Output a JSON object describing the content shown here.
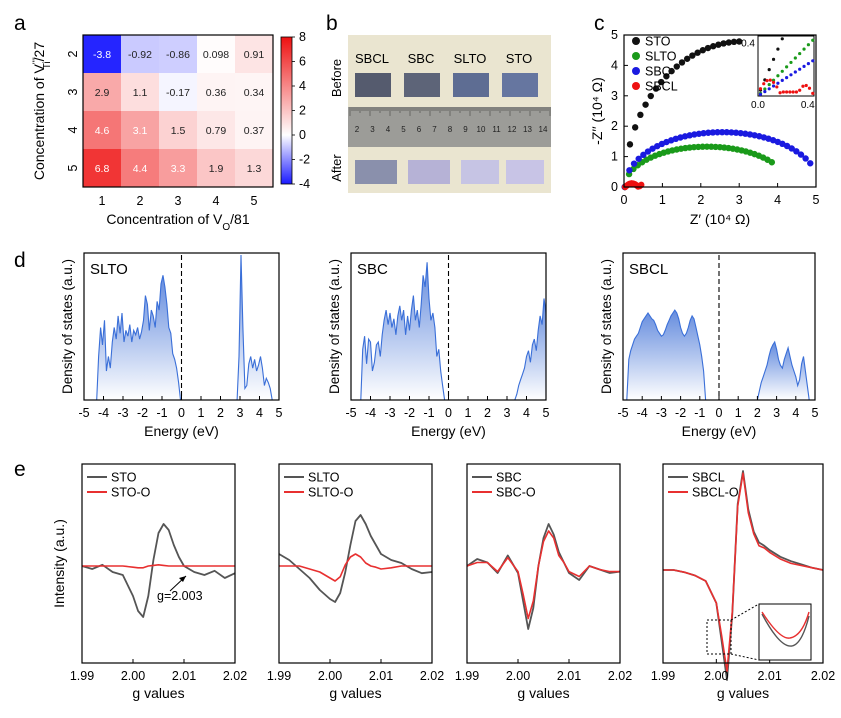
{
  "panel_labels": [
    "a",
    "b",
    "c",
    "d",
    "e"
  ],
  "chart_data": [
    {
      "id": "a",
      "type": "heatmap",
      "xlabel": "Concentration of V̇̇O/81",
      "xlabel_main": "Concentration of V",
      "xlabel_sub": "O",
      "xlabel_tail": "/81",
      "ylabel": "Concentration of V''''Ti/27",
      "ylabel_main": "Concentration of V",
      "ylabel_sup": "''''",
      "ylabel_sub": "Ti",
      "ylabel_tail": "/27",
      "x_categories": [
        "1",
        "2",
        "3",
        "4",
        "5"
      ],
      "y_categories": [
        "2",
        "3",
        "4",
        "5"
      ],
      "values": [
        [
          -3.8,
          -0.92,
          -0.86,
          0.098,
          0.91
        ],
        [
          2.9,
          1.1,
          -0.17,
          0.36,
          0.34
        ],
        [
          4.6,
          3.1,
          1.5,
          0.79,
          0.37
        ],
        [
          6.8,
          4.4,
          3.3,
          1.9,
          1.3
        ]
      ],
      "value_labels": [
        [
          "-3.8",
          "-0.92",
          "-0.86",
          "0.098",
          "0.91"
        ],
        [
          "2.9",
          "1.1",
          "-0.17",
          "0.36",
          "0.34"
        ],
        [
          "4.6",
          "3.1",
          "1.5",
          "0.79",
          "0.37"
        ],
        [
          "6.8",
          "4.4",
          "3.3",
          "1.9",
          "1.3"
        ]
      ],
      "colorbar": {
        "min": -4,
        "max": 8,
        "ticks": [
          "8",
          "6",
          "4",
          "2",
          "0",
          "-2",
          "-4"
        ],
        "low_color": "#1a1aff",
        "mid_color": "#ffffff",
        "high_color": "#ee1111"
      }
    },
    {
      "id": "c",
      "type": "scatter",
      "xlabel": "Z′ (10⁴ Ω)",
      "ylabel": "-Z′′ (10⁴ Ω)",
      "xlim": [
        0,
        5
      ],
      "ylim": [
        0,
        5
      ],
      "xticks": [
        "0",
        "1",
        "2",
        "3",
        "4",
        "5"
      ],
      "yticks": [
        "0",
        "1",
        "2",
        "3",
        "4",
        "5"
      ],
      "legend_position": "top-left",
      "series": [
        {
          "name": "STO",
          "color": "#111111",
          "shape": "semicircle",
          "x_start": 0.02,
          "x_end": 6.2,
          "x_max_shown": 3.0
        },
        {
          "name": "SLTO",
          "color": "#1a9a1a",
          "shape": "semicircle",
          "x_start": 0.02,
          "x_end": 4.3,
          "x_max_shown": 3.85
        },
        {
          "name": "SBC",
          "color": "#1a1ae0",
          "shape": "semicircle",
          "x_start": 0.02,
          "x_end": 5.1,
          "x_max_shown": 4.85
        },
        {
          "name": "SBCL",
          "color": "#ee1111",
          "shape": "arc_plus_small",
          "x_start": 0.03,
          "x_end": 0.25,
          "x_max_shown": 0.45
        }
      ],
      "inset": {
        "xlim": [
          0,
          0.45
        ],
        "ylim": [
          0,
          0.45
        ],
        "xticks": [
          "0.0",
          "0.4"
        ],
        "yticks": [
          "0.4"
        ]
      }
    },
    {
      "id": "d",
      "type": "area",
      "subplots": [
        {
          "name": "SLTO",
          "xlim": [
            -5,
            5
          ],
          "xticks": [
            "-5",
            "-4",
            "-3",
            "-2",
            "-1",
            "0",
            "1",
            "2",
            "3",
            "4",
            "5"
          ],
          "xlabel": "Energy (eV)",
          "ylabel": "Density of states (a.u.)",
          "x": [
            -4.35,
            -4.25,
            -4.15,
            -4.05,
            -3.95,
            -3.85,
            -3.75,
            -3.65,
            -3.55,
            -3.45,
            -3.35,
            -3.25,
            -3.15,
            -3.05,
            -2.95,
            -2.85,
            -2.75,
            -2.65,
            -2.55,
            -2.45,
            -2.35,
            -2.25,
            -2.15,
            -2.05,
            -1.95,
            -1.85,
            -1.75,
            -1.65,
            -1.55,
            -1.45,
            -1.35,
            -1.25,
            -1.15,
            -1.05,
            -0.95,
            -0.85,
            -0.75,
            -0.65,
            -0.55,
            -0.45,
            -0.35,
            -0.25,
            -0.15,
            -0.05,
            2.85,
            2.95,
            3.05,
            3.15,
            3.25,
            3.35,
            3.45,
            3.55,
            3.65,
            3.75,
            3.85,
            3.95,
            4.05,
            4.15,
            4.25,
            4.35,
            4.45,
            4.55,
            4.65,
            4.75
          ],
          "y": [
            0,
            0.3,
            0.5,
            0.38,
            0.55,
            0.2,
            0.3,
            0.22,
            0.4,
            0.5,
            0.42,
            0.58,
            0.46,
            0.6,
            0.4,
            0.48,
            0.44,
            0.52,
            0.4,
            0.48,
            0.45,
            0.5,
            0.42,
            0.47,
            0.55,
            0.72,
            0.66,
            0.48,
            0.62,
            0.58,
            0.5,
            0.68,
            0.62,
            0.8,
            0.86,
            0.78,
            0.66,
            0.5,
            0.46,
            0.32,
            0.28,
            0.22,
            0.12,
            0,
            0,
            0.3,
            1.0,
            0.5,
            0.08,
            0.1,
            0.25,
            0.3,
            0.22,
            0.28,
            0.2,
            0.24,
            0.3,
            0.22,
            0.1,
            0.15,
            0.12,
            0.08,
            0,
            0
          ]
        },
        {
          "name": "SBC",
          "xlim": [
            -5,
            5
          ],
          "xticks": [
            "-5",
            "-4",
            "-3",
            "-2",
            "-1",
            "0",
            "1",
            "2",
            "3",
            "4",
            "5"
          ],
          "xlabel": "Energy (eV)",
          "ylabel": "Density of states (a.u.)",
          "x": [
            -4.5,
            -4.4,
            -4.3,
            -4.2,
            -4.1,
            -4.0,
            -3.9,
            -3.8,
            -3.7,
            -3.6,
            -3.5,
            -3.4,
            -3.3,
            -3.2,
            -3.1,
            -3.0,
            -2.9,
            -2.8,
            -2.7,
            -2.6,
            -2.5,
            -2.4,
            -2.3,
            -2.2,
            -2.1,
            -2.0,
            -1.9,
            -1.8,
            -1.7,
            -1.6,
            -1.5,
            -1.4,
            -1.3,
            -1.2,
            -1.1,
            -1.0,
            -0.9,
            -0.8,
            -0.7,
            -0.6,
            -0.5,
            -0.4,
            -0.3,
            -0.2,
            3.4,
            3.5,
            3.6,
            3.7,
            3.8,
            3.9,
            4.0,
            4.1,
            4.2,
            4.3,
            4.4,
            4.5,
            4.6,
            4.7,
            4.8,
            4.9,
            5.0
          ],
          "y": [
            0,
            0.35,
            0.44,
            0.25,
            0.42,
            0.4,
            0.2,
            0.26,
            0.38,
            0.4,
            0.3,
            0.45,
            0.55,
            0.62,
            0.52,
            0.6,
            0.5,
            0.56,
            0.45,
            0.58,
            0.65,
            0.55,
            0.62,
            0.45,
            0.58,
            0.48,
            0.62,
            0.72,
            0.55,
            0.62,
            0.5,
            0.66,
            0.86,
            0.78,
            0.95,
            0.7,
            0.55,
            0.6,
            0.5,
            0.3,
            0.35,
            0.2,
            0.1,
            0,
            0,
            0.04,
            0.1,
            0.14,
            0.18,
            0.22,
            0.3,
            0.34,
            0.26,
            0.38,
            0.42,
            0.34,
            0.48,
            0.58,
            0.52,
            0.7,
            0.6
          ]
        },
        {
          "name": "SBCL",
          "xlim": [
            -5,
            5
          ],
          "xticks": [
            "-5",
            "-4",
            "-3",
            "-2",
            "-1",
            "0",
            "1",
            "2",
            "3",
            "4",
            "5"
          ],
          "xlabel": "Energy (eV)",
          "ylabel": "Density of states (a.u.)",
          "x": [
            -4.8,
            -4.7,
            -4.6,
            -4.5,
            -4.4,
            -4.3,
            -4.2,
            -4.1,
            -4.0,
            -3.9,
            -3.8,
            -3.7,
            -3.6,
            -3.5,
            -3.4,
            -3.3,
            -3.2,
            -3.1,
            -3.0,
            -2.9,
            -2.8,
            -2.7,
            -2.6,
            -2.5,
            -2.4,
            -2.3,
            -2.2,
            -2.1,
            -2.0,
            -1.9,
            -1.8,
            -1.7,
            -1.6,
            -1.5,
            -1.4,
            -1.3,
            -1.2,
            -1.1,
            -1.0,
            -0.9,
            -0.8,
            -0.7,
            2.0,
            2.1,
            2.2,
            2.3,
            2.4,
            2.5,
            2.6,
            2.7,
            2.8,
            2.9,
            3.0,
            3.1,
            3.2,
            3.3,
            3.4,
            3.5,
            3.6,
            3.7,
            3.8,
            3.9,
            4.0,
            4.1,
            4.2,
            4.3,
            4.4,
            4.5,
            4.6,
            4.7
          ],
          "y": [
            0,
            0.28,
            0.34,
            0.38,
            0.42,
            0.44,
            0.46,
            0.5,
            0.54,
            0.56,
            0.58,
            0.6,
            0.58,
            0.56,
            0.55,
            0.52,
            0.48,
            0.46,
            0.44,
            0.45,
            0.48,
            0.52,
            0.55,
            0.58,
            0.6,
            0.62,
            0.6,
            0.56,
            0.5,
            0.46,
            0.44,
            0.46,
            0.5,
            0.55,
            0.58,
            0.56,
            0.5,
            0.44,
            0.38,
            0.3,
            0.2,
            0,
            0,
            0.06,
            0.12,
            0.16,
            0.2,
            0.24,
            0.3,
            0.35,
            0.38,
            0.4,
            0.35,
            0.28,
            0.24,
            0.22,
            0.28,
            0.32,
            0.36,
            0.3,
            0.24,
            0.2,
            0.16,
            0.1,
            0.14,
            0.25,
            0.3,
            0.2,
            0.1,
            0
          ]
        }
      ]
    },
    {
      "id": "e",
      "type": "line",
      "xlim": [
        1.99,
        2.02
      ],
      "xticks": [
        "1.99",
        "2.00",
        "2.01",
        "2.02"
      ],
      "xlabel": "g values",
      "ylabel": "Intensity (a.u.)",
      "annotation": "g=2.003",
      "subplots": [
        {
          "legend": [
            "STO",
            "STO-O"
          ],
          "colors": [
            "#555555",
            "#e83030"
          ],
          "x": [
            1.99,
            1.992,
            1.994,
            1.996,
            1.998,
            2.0,
            2.001,
            2.002,
            2.003,
            2.004,
            2.005,
            2.006,
            2.007,
            2.008,
            2.009,
            2.01,
            2.012,
            2.014,
            2.016,
            2.018,
            2.02
          ],
          "series": [
            [
              0.0,
              -0.05,
              0.02,
              -0.1,
              -0.15,
              -0.5,
              -0.75,
              -0.85,
              -0.5,
              0.1,
              0.55,
              0.7,
              0.6,
              0.35,
              0.15,
              0.0,
              -0.1,
              -0.15,
              -0.08,
              -0.2,
              -0.12
            ],
            [
              0.0,
              0.0,
              0.0,
              0.0,
              0.0,
              -0.02,
              -0.03,
              -0.03,
              0.0,
              0.01,
              0.02,
              0.01,
              0.0,
              0.0,
              0.0,
              0.0,
              0.0,
              0.0,
              0.0,
              0.0,
              0.0
            ]
          ]
        },
        {
          "legend": [
            "SLTO",
            "SLTO-O"
          ],
          "colors": [
            "#555555",
            "#e83030"
          ],
          "x": [
            1.99,
            1.992,
            1.994,
            1.996,
            1.998,
            2.0,
            2.001,
            2.002,
            2.003,
            2.004,
            2.005,
            2.006,
            2.007,
            2.008,
            2.009,
            2.01,
            2.012,
            2.014,
            2.016,
            2.018,
            2.02
          ],
          "series": [
            [
              0.2,
              0.1,
              -0.05,
              -0.2,
              -0.4,
              -0.55,
              -0.6,
              -0.45,
              -0.1,
              0.35,
              0.75,
              0.85,
              0.7,
              0.5,
              0.35,
              0.2,
              0.1,
              0.05,
              -0.05,
              -0.12,
              -0.1
            ],
            [
              0.0,
              0.0,
              0.0,
              -0.05,
              -0.1,
              -0.2,
              -0.25,
              -0.18,
              0.02,
              0.15,
              0.2,
              0.15,
              0.05,
              0.0,
              -0.02,
              -0.05,
              -0.03,
              0.0,
              0.0,
              0.0,
              0.0
            ]
          ]
        },
        {
          "legend": [
            "SBC",
            "SBC-O"
          ],
          "colors": [
            "#555555",
            "#e83030"
          ],
          "x": [
            1.99,
            1.992,
            1.994,
            1.996,
            1.998,
            2.0,
            2.001,
            2.002,
            2.003,
            2.004,
            2.005,
            2.006,
            2.007,
            2.008,
            2.009,
            2.01,
            2.012,
            2.014,
            2.016,
            2.018,
            2.02
          ],
          "series": [
            [
              0.0,
              0.1,
              0.05,
              -0.1,
              0.15,
              -0.1,
              -0.5,
              -0.9,
              -0.6,
              0.0,
              0.4,
              0.6,
              0.45,
              0.2,
              0.05,
              -0.1,
              -0.2,
              0.0,
              -0.05,
              -0.1,
              -0.08
            ],
            [
              0.0,
              0.05,
              0.05,
              -0.08,
              0.12,
              -0.08,
              -0.4,
              -0.75,
              -0.5,
              0.0,
              0.35,
              0.5,
              0.4,
              0.15,
              0.05,
              -0.08,
              -0.15,
              0.0,
              -0.05,
              -0.08,
              -0.08
            ]
          ]
        },
        {
          "legend": [
            "SBCL",
            "SBCL-O"
          ],
          "colors": [
            "#555555",
            "#e83030"
          ],
          "x": [
            1.99,
            1.992,
            1.994,
            1.996,
            1.998,
            2.0,
            2.001,
            2.002,
            2.003,
            2.004,
            2.005,
            2.006,
            2.007,
            2.008,
            2.009,
            2.01,
            2.012,
            2.014,
            2.016,
            2.018,
            2.02
          ],
          "series": [
            [
              0.0,
              0.0,
              -0.02,
              -0.05,
              -0.1,
              -0.3,
              -0.65,
              -1.0,
              -0.4,
              0.6,
              0.9,
              0.55,
              0.35,
              0.25,
              0.22,
              0.18,
              0.12,
              0.08,
              0.05,
              0.02,
              0.0
            ],
            [
              0.0,
              0.0,
              -0.02,
              -0.05,
              -0.1,
              -0.3,
              -0.6,
              -0.92,
              -0.38,
              0.58,
              0.88,
              0.52,
              0.33,
              0.22,
              0.2,
              0.16,
              0.1,
              0.06,
              0.04,
              0.02,
              0.0
            ]
          ]
        }
      ]
    }
  ],
  "photo_panel": {
    "labels_before": [
      "SBCL",
      "SBC",
      "SLTO",
      "STO"
    ],
    "row_labels": [
      "Before",
      "After"
    ],
    "ruler_numbers": [
      "2",
      "3",
      "4",
      "5",
      "6",
      "7",
      "8",
      "9",
      "10",
      "11",
      "12",
      "13",
      "14"
    ]
  }
}
